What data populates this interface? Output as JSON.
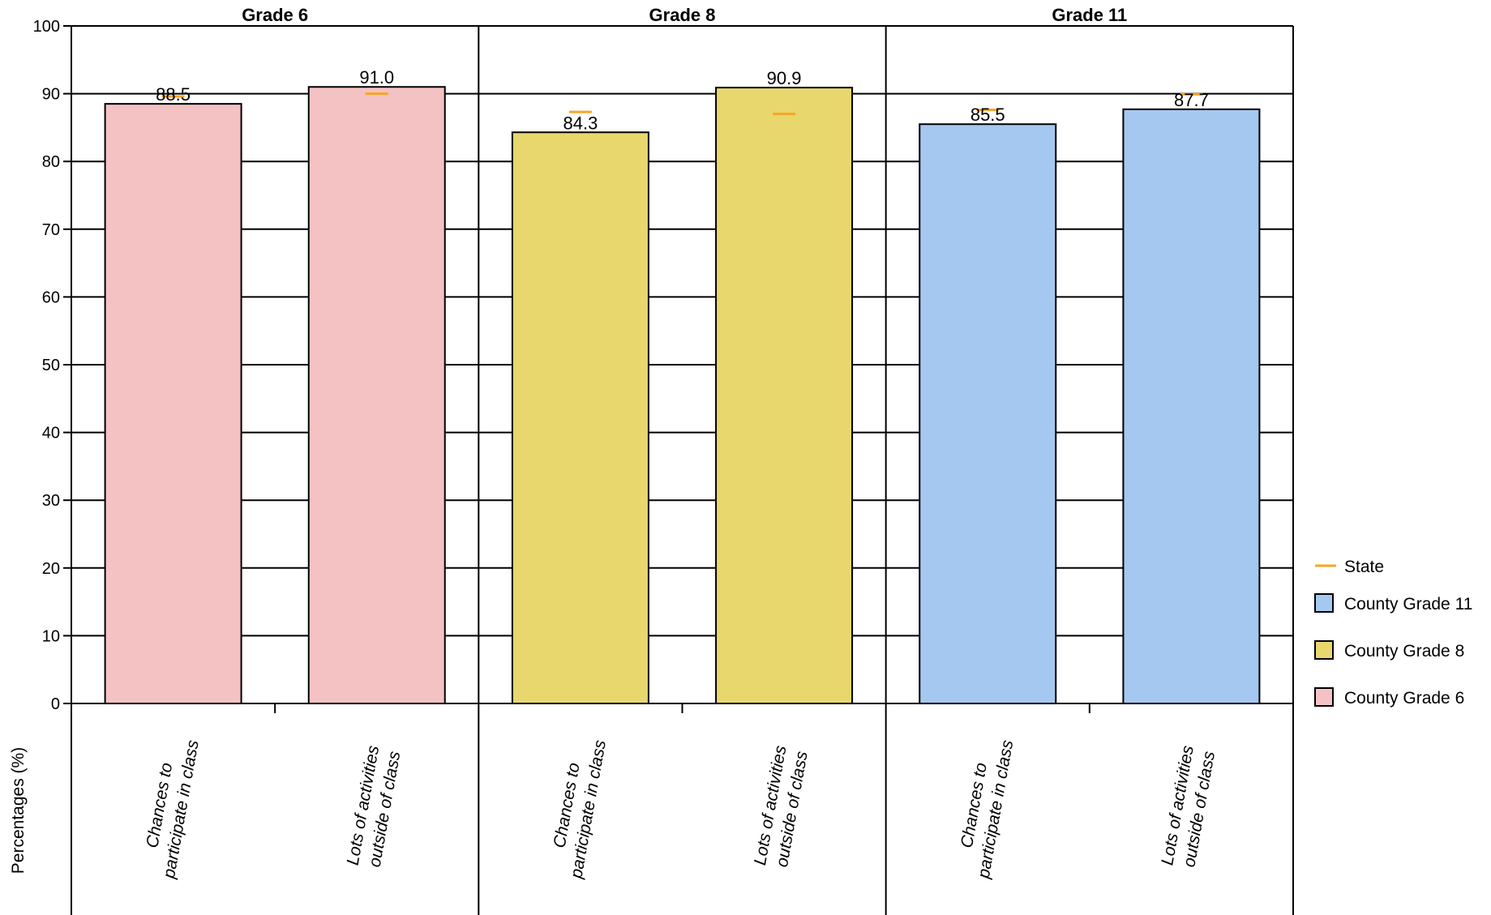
{
  "chart_data": {
    "type": "bar",
    "ylabel": "Percentages (%)",
    "ylim": [
      0,
      100
    ],
    "yticks": [
      0,
      10,
      20,
      30,
      40,
      50,
      60,
      70,
      80,
      90,
      100
    ],
    "grid": true,
    "legend_position": "right",
    "panels": [
      {
        "title": "Grade 6",
        "series_name": "County Grade 6",
        "color": "#f4c2c2",
        "categories": [
          [
            "Chances to",
            "participate in class"
          ],
          [
            "Lots of activities",
            "outside of class"
          ]
        ],
        "values": [
          88.5,
          91.0
        ],
        "value_labels": [
          "88.5",
          "91.0"
        ],
        "state": [
          89.6,
          90.0
        ]
      },
      {
        "title": "Grade 8",
        "series_name": "County Grade 8",
        "color": "#e8d76c",
        "categories": [
          [
            "Chances to",
            "participate in class"
          ],
          [
            "Lots of activities",
            "outside of class"
          ]
        ],
        "values": [
          84.3,
          90.9
        ],
        "value_labels": [
          "84.3",
          "90.9"
        ],
        "state": [
          87.3,
          87.0
        ]
      },
      {
        "title": "Grade 11",
        "series_name": "County Grade 11",
        "color": "#a4c8f0",
        "categories": [
          [
            "Chances to",
            "participate in class"
          ],
          [
            "Lots of activities",
            "outside of class"
          ]
        ],
        "values": [
          85.5,
          87.7
        ],
        "value_labels": [
          "85.5",
          "87.7"
        ],
        "state": [
          87.6,
          89.9
        ]
      }
    ],
    "legend": [
      {
        "label": "State",
        "kind": "line",
        "color": "#f5a623"
      },
      {
        "label": "County Grade 11",
        "kind": "box",
        "color": "#a4c8f0"
      },
      {
        "label": "County Grade 8",
        "kind": "box",
        "color": "#e8d76c"
      },
      {
        "label": "County Grade 6",
        "kind": "box",
        "color": "#f4c2c2"
      }
    ]
  }
}
